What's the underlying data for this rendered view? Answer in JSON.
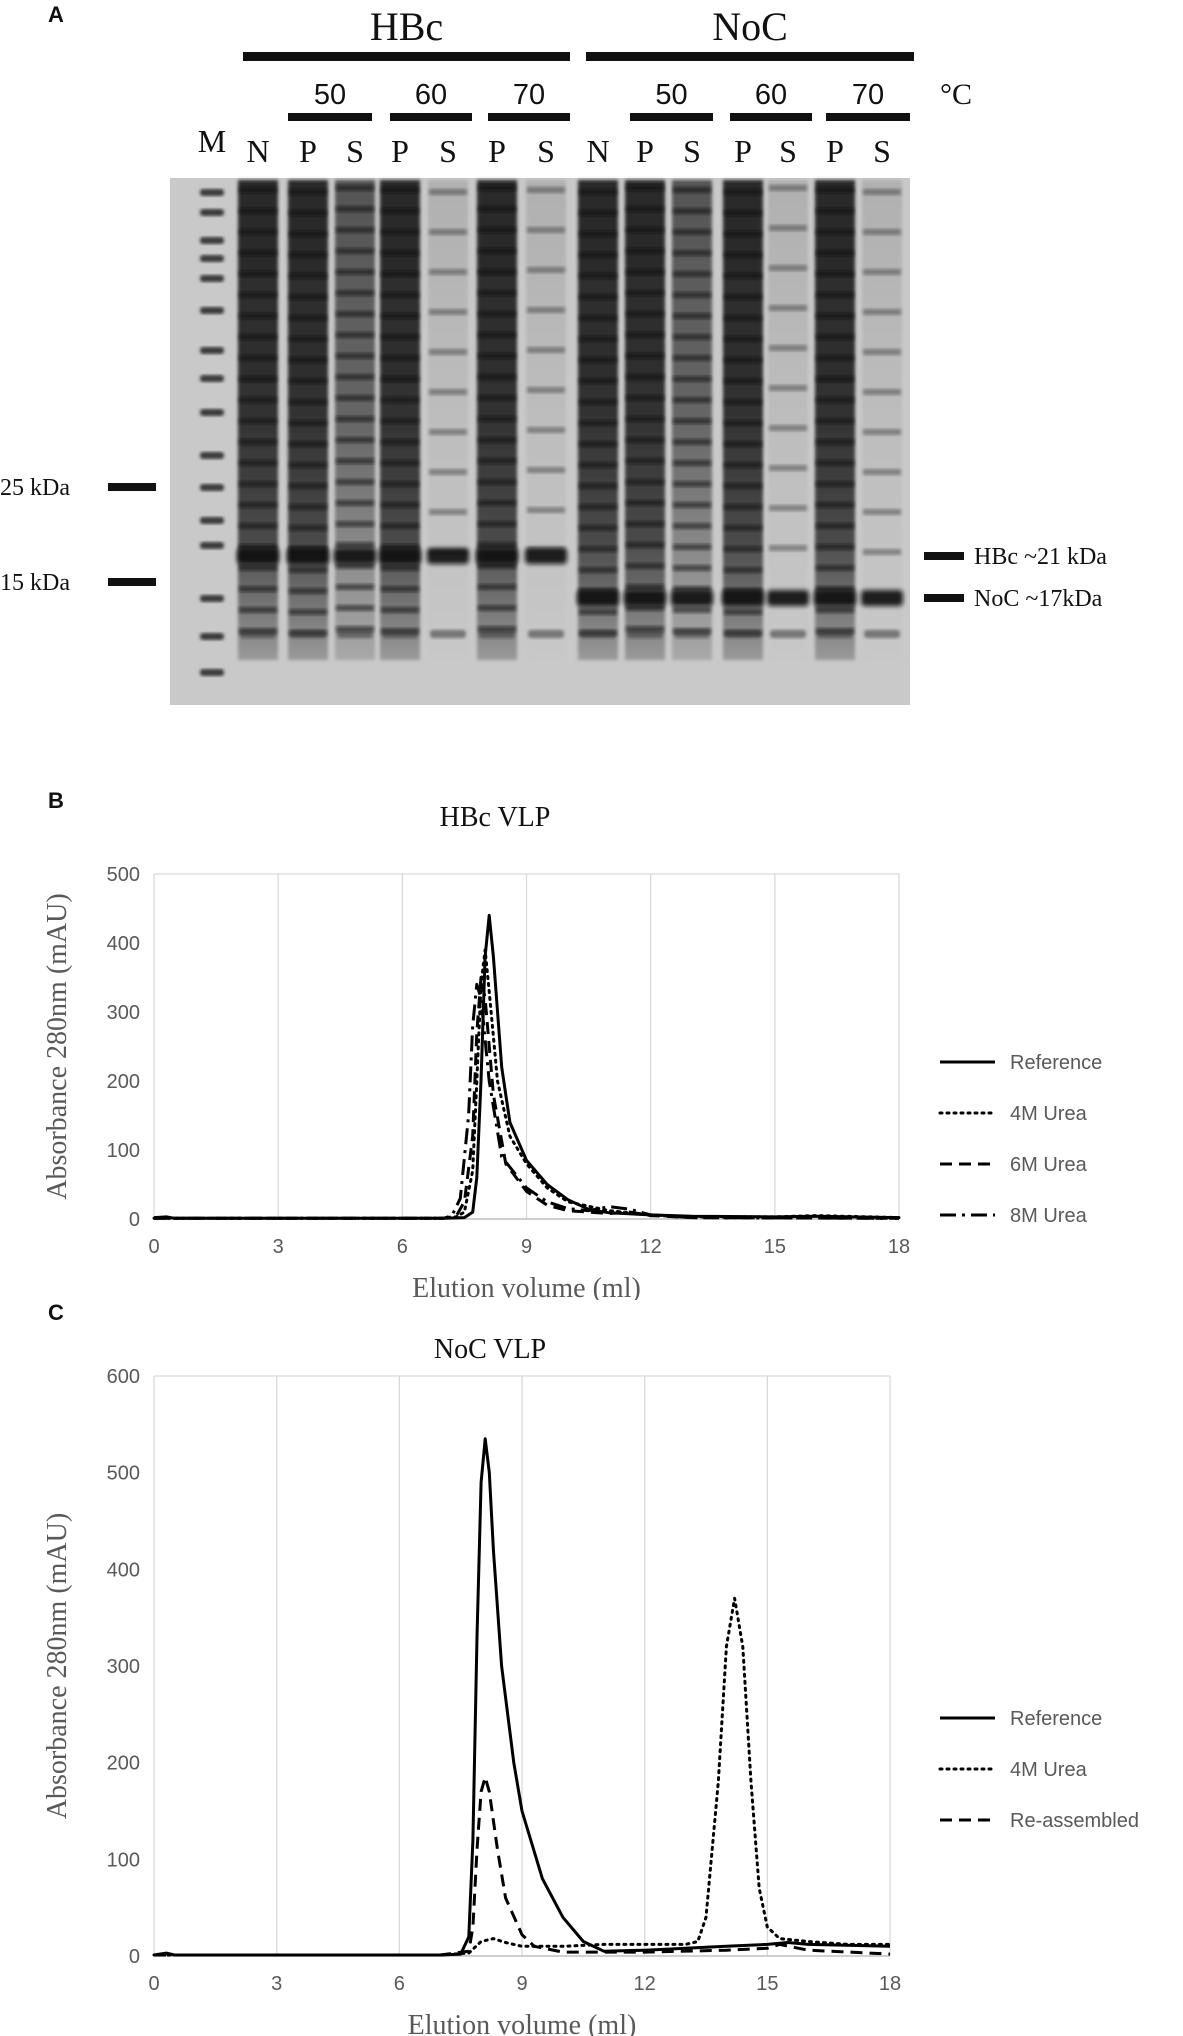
{
  "panel_a": {
    "letter": "A",
    "groups": [
      "HBc",
      "NoC"
    ],
    "temperatures": [
      "50",
      "60",
      "70",
      "50",
      "60",
      "70"
    ],
    "temp_unit": "°C",
    "lanes": [
      "M",
      "N",
      "P",
      "S",
      "P",
      "S",
      "P",
      "S",
      "N",
      "P",
      "S",
      "P",
      "S",
      "P",
      "S"
    ],
    "left_markers": [
      "25 kDa",
      "15 kDa"
    ],
    "right_markers": [
      "HBc ~21 kDa",
      "NoC ~17kDa"
    ]
  },
  "chart_data": [
    {
      "panel": "B",
      "type": "line",
      "title": "HBc VLP",
      "xlabel": "Elution volume (ml)",
      "ylabel": "Absorbance 280nm (mAU)",
      "xlim": [
        0,
        18
      ],
      "ylim": [
        0,
        500
      ],
      "xticks": [
        0,
        3,
        6,
        9,
        12,
        15,
        18
      ],
      "yticks": [
        0,
        100,
        200,
        300,
        400,
        500
      ],
      "grid": "vertical",
      "legend": "right",
      "series": [
        {
          "name": "Reference",
          "style": "solid",
          "points": [
            [
              0,
              2
            ],
            [
              0.3,
              3
            ],
            [
              0.5,
              1
            ],
            [
              6,
              1
            ],
            [
              7,
              1
            ],
            [
              7.5,
              2
            ],
            [
              7.7,
              10
            ],
            [
              7.8,
              60
            ],
            [
              7.9,
              200
            ],
            [
              8.0,
              380
            ],
            [
              8.1,
              440
            ],
            [
              8.2,
              380
            ],
            [
              8.4,
              220
            ],
            [
              8.6,
              140
            ],
            [
              9,
              85
            ],
            [
              9.5,
              50
            ],
            [
              10,
              28
            ],
            [
              10.5,
              14
            ],
            [
              11,
              9
            ],
            [
              12,
              6
            ],
            [
              13,
              4
            ],
            [
              15,
              3
            ],
            [
              16,
              4
            ],
            [
              18,
              2
            ]
          ]
        },
        {
          "name": "4M Urea",
          "style": "dotted",
          "points": [
            [
              0,
              1
            ],
            [
              6,
              1
            ],
            [
              7,
              1
            ],
            [
              7.3,
              3
            ],
            [
              7.5,
              10
            ],
            [
              7.7,
              70
            ],
            [
              7.8,
              200
            ],
            [
              7.9,
              340
            ],
            [
              8.0,
              390
            ],
            [
              8.1,
              330
            ],
            [
              8.3,
              200
            ],
            [
              8.6,
              120
            ],
            [
              9,
              80
            ],
            [
              9.5,
              45
            ],
            [
              10,
              25
            ],
            [
              11,
              12
            ],
            [
              12,
              6
            ],
            [
              13,
              3
            ],
            [
              15,
              3
            ],
            [
              16,
              5
            ],
            [
              18,
              2
            ]
          ]
        },
        {
          "name": "6M Urea",
          "style": "dashed",
          "points": [
            [
              0,
              1
            ],
            [
              6,
              1
            ],
            [
              7,
              1
            ],
            [
              7.3,
              4
            ],
            [
              7.5,
              25
            ],
            [
              7.7,
              120
            ],
            [
              7.8,
              270
            ],
            [
              7.9,
              350
            ],
            [
              8.0,
              320
            ],
            [
              8.2,
              180
            ],
            [
              8.5,
              80
            ],
            [
              9,
              40
            ],
            [
              9.5,
              20
            ],
            [
              10,
              12
            ],
            [
              11,
              8
            ],
            [
              11.5,
              10
            ],
            [
              12,
              5
            ],
            [
              13,
              2
            ],
            [
              18,
              1
            ]
          ]
        },
        {
          "name": "8M Urea",
          "style": "dashdot",
          "points": [
            [
              0,
              1
            ],
            [
              6,
              1
            ],
            [
              7,
              1
            ],
            [
              7.2,
              5
            ],
            [
              7.4,
              30
            ],
            [
              7.6,
              150
            ],
            [
              7.7,
              280
            ],
            [
              7.8,
              340
            ],
            [
              7.9,
              320
            ],
            [
              8.1,
              200
            ],
            [
              8.4,
              90
            ],
            [
              9,
              45
            ],
            [
              9.5,
              25
            ],
            [
              10,
              15
            ],
            [
              10.5,
              12
            ],
            [
              11,
              18
            ],
            [
              11.5,
              14
            ],
            [
              12,
              6
            ],
            [
              13,
              2
            ],
            [
              18,
              1
            ]
          ]
        }
      ]
    },
    {
      "panel": "C",
      "type": "line",
      "title": "NoC VLP",
      "xlabel": "Elution volume (ml)",
      "ylabel": "Absorbance 280nm (mAU)",
      "xlim": [
        0,
        18
      ],
      "ylim": [
        0,
        600
      ],
      "xticks": [
        0,
        3,
        6,
        9,
        12,
        15,
        18
      ],
      "yticks": [
        0,
        100,
        200,
        300,
        400,
        500,
        600
      ],
      "grid": "vertical",
      "legend": "right",
      "series": [
        {
          "name": "Reference",
          "style": "solid",
          "points": [
            [
              0,
              1
            ],
            [
              0.3,
              3
            ],
            [
              0.5,
              1
            ],
            [
              6,
              1
            ],
            [
              7,
              1
            ],
            [
              7.5,
              2
            ],
            [
              7.7,
              20
            ],
            [
              7.8,
              120
            ],
            [
              7.9,
              330
            ],
            [
              8.0,
              490
            ],
            [
              8.1,
              535
            ],
            [
              8.2,
              500
            ],
            [
              8.3,
              420
            ],
            [
              8.5,
              300
            ],
            [
              8.8,
              200
            ],
            [
              9,
              150
            ],
            [
              9.5,
              80
            ],
            [
              10,
              40
            ],
            [
              10.5,
              15
            ],
            [
              11,
              5
            ],
            [
              12,
              6
            ],
            [
              13,
              8
            ],
            [
              14,
              10
            ],
            [
              15,
              12
            ],
            [
              15.5,
              14
            ],
            [
              16,
              12
            ],
            [
              18,
              10
            ]
          ]
        },
        {
          "name": "4M Urea",
          "style": "dotted",
          "points": [
            [
              0,
              1
            ],
            [
              6,
              1
            ],
            [
              7,
              1
            ],
            [
              7.7,
              3
            ],
            [
              8,
              15
            ],
            [
              8.3,
              18
            ],
            [
              8.6,
              14
            ],
            [
              9,
              10
            ],
            [
              10,
              10
            ],
            [
              11,
              12
            ],
            [
              12,
              12
            ],
            [
              13,
              12
            ],
            [
              13.3,
              15
            ],
            [
              13.5,
              40
            ],
            [
              13.8,
              180
            ],
            [
              14,
              320
            ],
            [
              14.2,
              370
            ],
            [
              14.4,
              320
            ],
            [
              14.6,
              180
            ],
            [
              14.8,
              70
            ],
            [
              15,
              30
            ],
            [
              15.3,
              18
            ],
            [
              16,
              15
            ],
            [
              17,
              12
            ],
            [
              18,
              12
            ]
          ]
        },
        {
          "name": "Re-assembled",
          "style": "dashed",
          "points": [
            [
              0,
              1
            ],
            [
              6,
              1
            ],
            [
              7,
              1
            ],
            [
              7.7,
              5
            ],
            [
              7.8,
              30
            ],
            [
              7.9,
              110
            ],
            [
              8.0,
              170
            ],
            [
              8.1,
              185
            ],
            [
              8.2,
              170
            ],
            [
              8.4,
              110
            ],
            [
              8.6,
              60
            ],
            [
              9,
              22
            ],
            [
              9.3,
              10
            ],
            [
              10,
              4
            ],
            [
              12,
              4
            ],
            [
              14,
              6
            ],
            [
              15,
              8
            ],
            [
              15.3,
              12
            ],
            [
              16,
              6
            ],
            [
              17,
              4
            ],
            [
              18,
              2
            ]
          ]
        }
      ]
    }
  ],
  "panel_b_letter": "B",
  "panel_c_letter": "C"
}
